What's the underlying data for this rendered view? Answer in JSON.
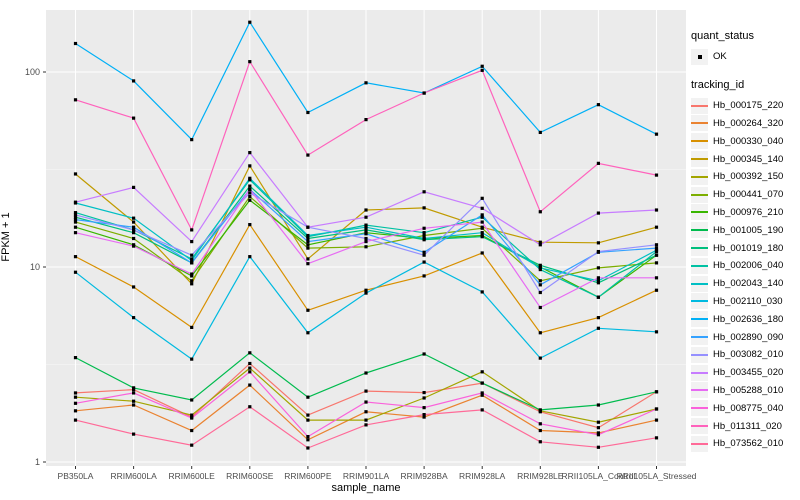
{
  "chart_data": {
    "type": "line",
    "title": "",
    "xlabel": "sample_name",
    "ylabel": "FPKM + 1",
    "y_scale": "log10",
    "y_ticks": [
      1,
      10,
      100
    ],
    "y_minor_ticks": [
      3.162,
      31.62
    ],
    "ylim": [
      0.95,
      210
    ],
    "grid": "white major+minor horizontal and vertical category lines on gray panel, no axis box",
    "legend_position": "right",
    "point_marker": "small black square on every data point",
    "categories": [
      "PB350LA",
      "RRIM600LA",
      "RRIM600LE",
      "RRIM600SE",
      "RRIM600PE",
      "RRIM901LA",
      "RRIM928BA",
      "RRIM928LA",
      "RRIM928LE",
      "RRII105LA_Control",
      "RRII105LA_Stressed"
    ],
    "series": [
      {
        "name": "Hb_000175_220",
        "color": "#F8766D",
        "values": [
          2.26,
          2.35,
          1.7,
          3.2,
          1.74,
          2.31,
          2.27,
          2.54,
          1.81,
          1.5,
          2.29
        ]
      },
      {
        "name": "Hb_000264_320",
        "color": "#EA8331",
        "values": [
          1.83,
          1.96,
          1.45,
          2.48,
          1.3,
          1.81,
          1.7,
          2.2,
          1.45,
          1.41,
          1.64
        ]
      },
      {
        "name": "Hb_000330_040",
        "color": "#D89000",
        "values": [
          11.3,
          7.9,
          4.9,
          16.5,
          6.0,
          7.6,
          9.0,
          11.8,
          4.6,
          5.5,
          7.6
        ]
      },
      {
        "name": "Hb_000345_140",
        "color": "#C09B00",
        "values": [
          30.0,
          17.0,
          8.2,
          33.0,
          11.0,
          19.6,
          20.1,
          16.0,
          13.4,
          13.3,
          16.0
        ]
      },
      {
        "name": "Hb_000392_150",
        "color": "#A3A500",
        "values": [
          2.15,
          2.05,
          1.74,
          3.03,
          1.64,
          1.64,
          2.13,
          2.9,
          1.83,
          1.6,
          1.87
        ]
      },
      {
        "name": "Hb_000441_070",
        "color": "#7CAE00",
        "values": [
          17.0,
          14.0,
          8.5,
          23.0,
          12.5,
          12.7,
          14.5,
          15.8,
          8.5,
          9.9,
          10.5
        ]
      },
      {
        "name": "Hb_000976_210",
        "color": "#39B600",
        "values": [
          16.0,
          13.0,
          9.0,
          22.0,
          13.0,
          15.0,
          14.0,
          14.5,
          10.0,
          7.0,
          11.5
        ]
      },
      {
        "name": "Hb_001005_190",
        "color": "#00BB4E",
        "values": [
          3.43,
          2.4,
          2.08,
          3.63,
          2.15,
          2.86,
          3.58,
          2.54,
          1.85,
          1.96,
          2.29
        ]
      },
      {
        "name": "Hb_001019_180",
        "color": "#00BF7D",
        "values": [
          18.0,
          15.0,
          10.5,
          26.0,
          14.0,
          15.5,
          13.8,
          14.3,
          10.2,
          8.3,
          11.5
        ]
      },
      {
        "name": "Hb_002006_040",
        "color": "#00C1A3",
        "values": [
          19.0,
          15.5,
          11.0,
          28.0,
          14.3,
          16.4,
          15.0,
          18.0,
          9.7,
          7.0,
          12.0
        ]
      },
      {
        "name": "Hb_002043_140",
        "color": "#00BFC4",
        "values": [
          21.3,
          17.8,
          10.8,
          28.5,
          14.5,
          16.0,
          14.0,
          15.0,
          9.9,
          8.5,
          12.2
        ]
      },
      {
        "name": "Hb_002110_030",
        "color": "#00BAE0",
        "values": [
          9.4,
          5.5,
          3.37,
          11.3,
          4.6,
          7.35,
          10.6,
          7.45,
          3.41,
          4.85,
          4.65
        ]
      },
      {
        "name": "Hb_002636_180",
        "color": "#00B0F6",
        "values": [
          140,
          90,
          45,
          180,
          62,
          88,
          78,
          107,
          49,
          68,
          48
        ]
      },
      {
        "name": "Hb_002890_090",
        "color": "#35A2FF",
        "values": [
          17.5,
          16.0,
          10.5,
          25.0,
          13.5,
          14.8,
          11.9,
          18.5,
          8.1,
          11.9,
          12.5
        ]
      },
      {
        "name": "Hb_003082_010",
        "color": "#9590FF",
        "values": [
          18.5,
          15.5,
          11.5,
          24.0,
          16.0,
          14.0,
          11.5,
          22.5,
          7.4,
          12.0,
          13.0
        ]
      },
      {
        "name": "Hb_003455_020",
        "color": "#C77CFF",
        "values": [
          21.5,
          25.6,
          13.5,
          38.6,
          16.0,
          18.0,
          24.3,
          20.0,
          13.0,
          18.9,
          19.6
        ]
      },
      {
        "name": "Hb_005288_010",
        "color": "#E76BF3",
        "values": [
          15.0,
          12.8,
          9.2,
          25.0,
          10.4,
          13.5,
          15.8,
          17.0,
          6.2,
          8.8,
          8.8
        ]
      },
      {
        "name": "Hb_008775_040",
        "color": "#FA62DB",
        "values": [
          2.0,
          2.26,
          1.68,
          2.9,
          1.35,
          2.03,
          1.9,
          2.26,
          1.57,
          1.38,
          1.87
        ]
      },
      {
        "name": "Hb_011311_020",
        "color": "#FF62BC",
        "values": [
          72,
          58,
          15.5,
          113,
          37.5,
          57,
          78,
          102,
          19.2,
          34.0,
          29.6
        ]
      },
      {
        "name": "Hb_073562_010",
        "color": "#FF6A98",
        "values": [
          1.64,
          1.39,
          1.22,
          1.92,
          1.18,
          1.55,
          1.75,
          1.85,
          1.27,
          1.19,
          1.33
        ]
      }
    ]
  },
  "legend": {
    "quant_status_title": "quant_status",
    "quant_status_items": [
      {
        "label": "OK"
      }
    ],
    "tracking_id_title": "tracking_id"
  },
  "colors": {
    "panel_background": "#EBEBEB",
    "grid_line": "#FFFFFF",
    "tick_text": "#4D4D4D",
    "tick_mark": "#333333",
    "point": "#000000",
    "legend_key_background": "#F2F2F2"
  }
}
